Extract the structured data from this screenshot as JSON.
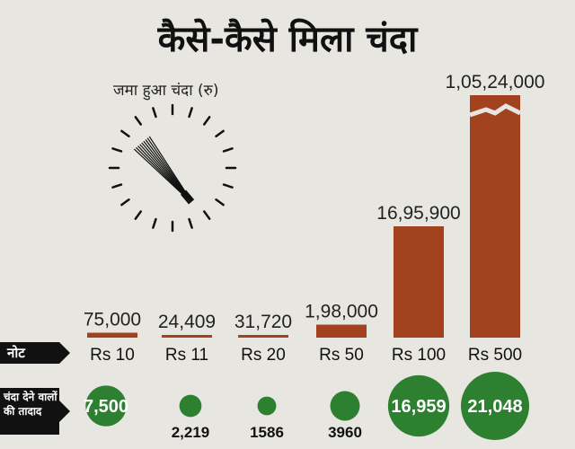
{
  "title": "कैसे-कैसे मिला चंदा",
  "chart_data": {
    "type": "bar",
    "title": "कैसे-कैसे मिला चंदा",
    "subtitle": "जमा हुआ चंदा (रु)",
    "categories": [
      "Rs 10",
      "Rs 11",
      "Rs 20",
      "Rs 50",
      "Rs 100",
      "Rs 500"
    ],
    "values": [
      75000,
      24409,
      31720,
      198000,
      1695900,
      10524000
    ],
    "value_labels": [
      "75,000",
      "24,409",
      "31,720",
      "1,98,000",
      "16,95,900",
      "1,05,24,000"
    ],
    "axis_break": true,
    "bar_color": "#a3421f",
    "row_labels": {
      "notes": "नोट",
      "donors": "चंदा देने वालों की तादाद"
    },
    "donors": {
      "values": [
        7500,
        2219,
        1586,
        3960,
        16959,
        21048
      ],
      "labels": [
        "7,500",
        "2,219",
        "1586",
        "3960",
        "16,959",
        "21,048"
      ],
      "label_inside": [
        true,
        false,
        false,
        false,
        true,
        true
      ],
      "color": "#2e8031"
    }
  }
}
